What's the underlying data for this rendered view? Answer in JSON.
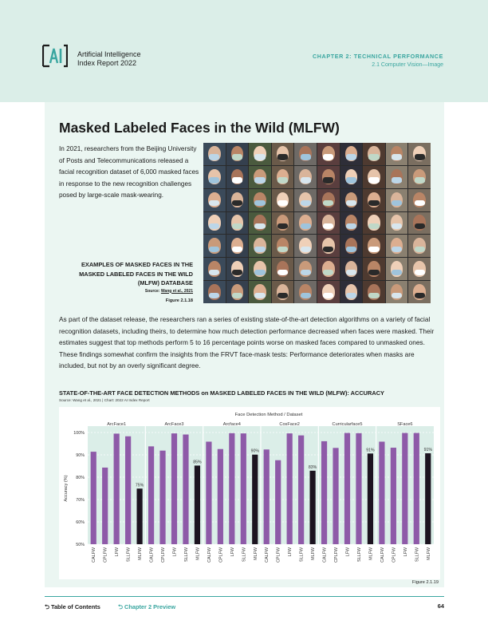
{
  "header": {
    "brand_line1": "Artificial Intelligence",
    "brand_line2": "Index Report 2022",
    "chapter": "CHAPTER 2: TECHNICAL PERFORMANCE",
    "section": "2.1 Computer Vision—Image",
    "logo_text": "AI"
  },
  "title": "Masked Labeled Faces in the Wild (MLFW)",
  "intro": "In 2021, researchers from the Beijing University of Posts and Telecommunications released a facial recognition dataset of 6,000 masked faces in response to the new recognition challenges posed by large-scale mask-wearing.",
  "figure1": {
    "caption": "EXAMPLES OF MASKED FACES IN THE MASKED LABELED FACES IN THE WILD (MLFW) DATABASE",
    "source_prefix": "Source: ",
    "source_link": "Wang et al., 2021",
    "label": "Figure 2.1.18"
  },
  "paragraph": "As part of the dataset release, the researchers ran a series of existing state-of-the-art detection algorithms on a variety of facial recognition datasets, including theirs, to determine how much detection performance decreased when faces were masked. Their estimates suggest that top methods perform 5 to 16 percentage points worse on masked faces compared to unmasked ones. These findings somewhat confirm the insights from the FRVT face-mask tests: Performance deteriorates when masks are included, but not by an overly significant degree.",
  "chart_title": "STATE-OF-THE-ART FACE DETECTION METHODS on MASKED LABELED FACES IN THE WILD (MLFW): ACCURACY",
  "chart_source": "Source: Wang et al., 2021 | Chart: 2022 AI Index Report",
  "figure2_label": "Figure 2.1.19",
  "footer": {
    "toc": "Table of Contents",
    "preview": "Chapter 2 Preview",
    "page": "64"
  },
  "colors": {
    "header_bg": "#dbeee8",
    "accent": "#3aa6a0",
    "bar_purple": "#8e5aa8",
    "bar_dark": "#1c1420",
    "chart_bg": "#dbeee8"
  },
  "chart_data": {
    "type": "bar",
    "title": "STATE-OF-THE-ART FACE DETECTION METHODS on MASKED LABELED FACES IN THE WILD (MLFW): ACCURACY",
    "xlabel": "Face Detection Method / Dataset",
    "ylabel": "Accuracy (%)",
    "ylim": [
      50,
      100
    ],
    "yticks": [
      "50%",
      "60%",
      "70%",
      "80%",
      "90%",
      "100%"
    ],
    "grid": true,
    "datasets": [
      "CALFW",
      "CPLFW",
      "LFW",
      "SLLFW",
      "MLFW"
    ],
    "dataset_labels": [
      "CALFW",
      "CPLFW",
      "LFW",
      "SLLFW",
      "MLFW"
    ],
    "groups": [
      {
        "method": "ArcFace1",
        "values": [
          91.4,
          84.3,
          99.5,
          98.3,
          74.9
        ],
        "label": "75%"
      },
      {
        "method": "ArcFace3",
        "values": [
          93.8,
          91.9,
          99.6,
          99.1,
          85.2
        ],
        "label": "85%"
      },
      {
        "method": "Arcface4",
        "values": [
          95.9,
          92.6,
          99.7,
          99.6,
          90.1
        ],
        "label": "90%"
      },
      {
        "method": "CosFace2",
        "values": [
          92.4,
          87.6,
          99.6,
          98.7,
          82.9
        ],
        "label": "83%"
      },
      {
        "method": "Curricularface5",
        "values": [
          96.1,
          93.1,
          99.8,
          99.7,
          90.6
        ],
        "label": "91%"
      },
      {
        "method": "SFace6",
        "values": [
          95.9,
          93.2,
          99.8,
          99.8,
          90.7
        ],
        "label": "91%"
      }
    ]
  }
}
